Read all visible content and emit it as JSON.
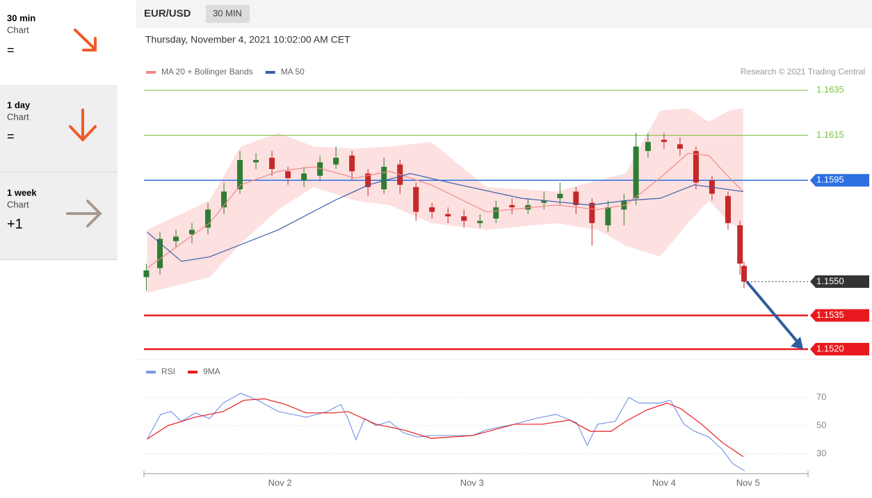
{
  "sidebar": {
    "items": [
      {
        "period": "30 min",
        "kind": "Chart",
        "signal": "="
      },
      {
        "period": "1 day",
        "kind": "Chart",
        "signal": "="
      },
      {
        "period": "1 week",
        "kind": "Chart",
        "signal": "+1"
      }
    ]
  },
  "header": {
    "symbol": "EUR/USD",
    "interval": "30 MIN",
    "timestamp": "Thursday, November 4, 2021 10:02:00 AM CET",
    "credit": "Research © 2021 Trading Central"
  },
  "chart_data": [
    {
      "type": "candlestick",
      "xlim": [
        7,
        90
      ],
      "ylim": [
        1.1516,
        1.1638
      ],
      "up_color": "#2f7d32",
      "down_color": "#c62828",
      "candles": {
        "x": [
          7.3,
          9,
          11,
          13,
          15,
          17,
          19,
          21,
          23,
          25,
          27,
          29,
          31,
          33,
          35,
          37,
          39,
          41,
          43,
          45,
          47,
          49,
          51,
          53,
          55,
          57,
          59,
          61,
          63,
          65,
          67,
          68.5,
          70,
          72,
          74,
          76,
          78,
          80,
          81.5,
          82
        ],
        "open": [
          1.1552,
          1.1556,
          1.1568,
          1.1571,
          1.1574,
          1.1583,
          1.1591,
          1.1603,
          1.1605,
          1.1599,
          1.1595,
          1.1597,
          1.1602,
          1.1606,
          1.1598,
          1.1591,
          1.1602,
          1.1592,
          1.1583,
          1.158,
          1.1579,
          1.1576,
          1.1578,
          1.1584,
          1.1582,
          1.1585,
          1.1587,
          1.159,
          1.1585,
          1.1575,
          1.1582,
          1.1587,
          1.1608,
          1.1613,
          1.1611,
          1.1608,
          1.1595,
          1.1588,
          1.1575,
          1.1557
        ],
        "high": [
          1.1558,
          1.1572,
          1.1573,
          1.1576,
          1.1585,
          1.1594,
          1.1608,
          1.1607,
          1.1608,
          1.1601,
          1.1601,
          1.1606,
          1.161,
          1.1608,
          1.16,
          1.1605,
          1.1604,
          1.1594,
          1.1585,
          1.1583,
          1.1582,
          1.158,
          1.1586,
          1.1587,
          1.1587,
          1.159,
          1.1594,
          1.1592,
          1.1587,
          1.1586,
          1.1589,
          1.1616,
          1.1616,
          1.1616,
          1.1614,
          1.161,
          1.1597,
          1.159,
          1.1577,
          1.1559
        ],
        "low": [
          1.1546,
          1.1553,
          1.1565,
          1.1567,
          1.1571,
          1.158,
          1.1589,
          1.16,
          1.1597,
          1.1593,
          1.1592,
          1.1595,
          1.16,
          1.1595,
          1.1588,
          1.1589,
          1.1589,
          1.1577,
          1.1578,
          1.1576,
          1.1574,
          1.1574,
          1.1576,
          1.158,
          1.158,
          1.1582,
          1.1584,
          1.158,
          1.1566,
          1.1572,
          1.1575,
          1.1584,
          1.1605,
          1.1609,
          1.1606,
          1.1591,
          1.1586,
          1.1573,
          1.1553,
          1.1547
        ],
        "close": [
          1.1555,
          1.1569,
          1.157,
          1.1573,
          1.1582,
          1.159,
          1.1604,
          1.1604,
          1.16,
          1.1596,
          1.1598,
          1.1603,
          1.1605,
          1.1599,
          1.1592,
          1.1601,
          1.1593,
          1.1581,
          1.1581,
          1.1579,
          1.1577,
          1.1577,
          1.1583,
          1.1583,
          1.1584,
          1.1586,
          1.1589,
          1.1584,
          1.1576,
          1.1583,
          1.1586,
          1.161,
          1.1612,
          1.1612,
          1.1609,
          1.1594,
          1.1589,
          1.1576,
          1.1558,
          1.155
        ]
      },
      "series": [
        {
          "name": "MA 20 + Bollinger Bands",
          "color": "#f08a8a",
          "band_color": "#fde0e0",
          "x": [
            7.4,
            15.2,
            19.1,
            23.8,
            28.2,
            33.4,
            37.7,
            42.9,
            49.8,
            58.5,
            63.7,
            67.2,
            71.5,
            75,
            77.6,
            80.2,
            81.9
          ],
          "values": [
            1.1556,
            1.1576,
            1.1593,
            1.1599,
            1.1601,
            1.1596,
            1.1599,
            1.1593,
            1.1581,
            1.1584,
            1.1582,
            1.1584,
            1.1596,
            1.1607,
            1.1606,
            1.1596,
            1.159
          ],
          "upper": [
            1.1573,
            1.1586,
            1.161,
            1.1616,
            1.161,
            1.1609,
            1.161,
            1.1612,
            1.1592,
            1.159,
            1.1595,
            1.1598,
            1.1626,
            1.1627,
            1.1621,
            1.1626,
            1.1627
          ],
          "lower": [
            1.1545,
            1.1552,
            1.1567,
            1.1582,
            1.1592,
            1.1586,
            1.1584,
            1.1576,
            1.1573,
            1.1576,
            1.1573,
            1.1566,
            1.1561,
            1.1576,
            1.1586,
            1.1576,
            1.1573
          ]
        },
        {
          "name": "MA 50",
          "color": "#3a5ea8",
          "x": [
            7.4,
            11.7,
            15.2,
            23.8,
            30.8,
            35.1,
            40.3,
            46.4,
            54.2,
            62.8,
            67.2,
            71.5,
            75.8,
            81.9
          ],
          "values": [
            1.1572,
            1.1559,
            1.1561,
            1.1573,
            1.1586,
            1.1593,
            1.1598,
            1.1593,
            1.1587,
            1.1584,
            1.1586,
            1.1587,
            1.1593,
            1.159
          ]
        }
      ],
      "levels": [
        {
          "value": 1.1635,
          "color": "#7dc242",
          "style": "solid",
          "width": 1,
          "badge": false
        },
        {
          "value": 1.1615,
          "color": "#7dc242",
          "style": "solid",
          "width": 1,
          "badge": false
        },
        {
          "value": 1.1595,
          "color": "#2d6fe0",
          "style": "solid",
          "width": 1.5,
          "badge": true
        },
        {
          "value": 1.155,
          "label": "1.1550",
          "color": "#333333",
          "style": "dotted",
          "width": 1,
          "badge": true
        },
        {
          "value": 1.1535,
          "label": "1.1535",
          "color": "#e8191e",
          "style": "solid",
          "width": 2.5,
          "badge": true
        },
        {
          "value": 1.152,
          "label": "1.1520",
          "color": "#e8191e",
          "style": "solid",
          "width": 2.5,
          "badge": true
        }
      ]
    },
    {
      "type": "line",
      "xlim": [
        7,
        90
      ],
      "ylim": [
        15,
        83
      ],
      "yticks": [
        30,
        50,
        70
      ],
      "grid": true,
      "xticks": [
        {
          "value": 24,
          "label": "Nov 2"
        },
        {
          "value": 48,
          "label": "Nov 3"
        },
        {
          "value": 72,
          "label": "Nov 4"
        },
        {
          "value": 82.5,
          "label": "Nov 5"
        }
      ],
      "series": [
        {
          "name": "RSI",
          "color": "#7a97e6",
          "x": [
            7.4,
            9.1,
            10.4,
            11.7,
            13.4,
            15.2,
            16.9,
            19.1,
            21.2,
            23.8,
            27.3,
            29.9,
            31.6,
            32.5,
            33.5,
            34.6,
            36,
            37.7,
            39.4,
            41.2,
            42.9,
            45.5,
            48.1,
            49.8,
            53.3,
            55.9,
            58.5,
            61.1,
            62.4,
            63.7,
            65.9,
            67.6,
            68.9,
            71.5,
            72.8,
            74.5,
            75.8,
            77.6,
            79.3,
            80.6,
            82.1
          ],
          "values": [
            40.5,
            58,
            60,
            53,
            59,
            55,
            66,
            73,
            68,
            60,
            56,
            60,
            65,
            55,
            40,
            55,
            50,
            53,
            45,
            42,
            43,
            43,
            43,
            47,
            51,
            55,
            58,
            52,
            36,
            51,
            53,
            70,
            66,
            66,
            68,
            51,
            46,
            42,
            33,
            23,
            18
          ]
        },
        {
          "name": "9MA",
          "color": "#e8191e",
          "x": [
            7.4,
            10,
            13.4,
            16.9,
            19.5,
            22.1,
            24.7,
            27.3,
            30.8,
            32.5,
            36,
            39.4,
            42.9,
            48.1,
            53.3,
            56.8,
            60.2,
            62.8,
            65.4,
            67.2,
            69.8,
            72.4,
            74.1,
            76.7,
            79.3,
            81.9
          ],
          "values": [
            40.5,
            50,
            56,
            60,
            68,
            69,
            65,
            59,
            59,
            60,
            51,
            47,
            41,
            43,
            51,
            51,
            54,
            46,
            46,
            53,
            61,
            66,
            62,
            51,
            38,
            28
          ]
        }
      ]
    }
  ]
}
